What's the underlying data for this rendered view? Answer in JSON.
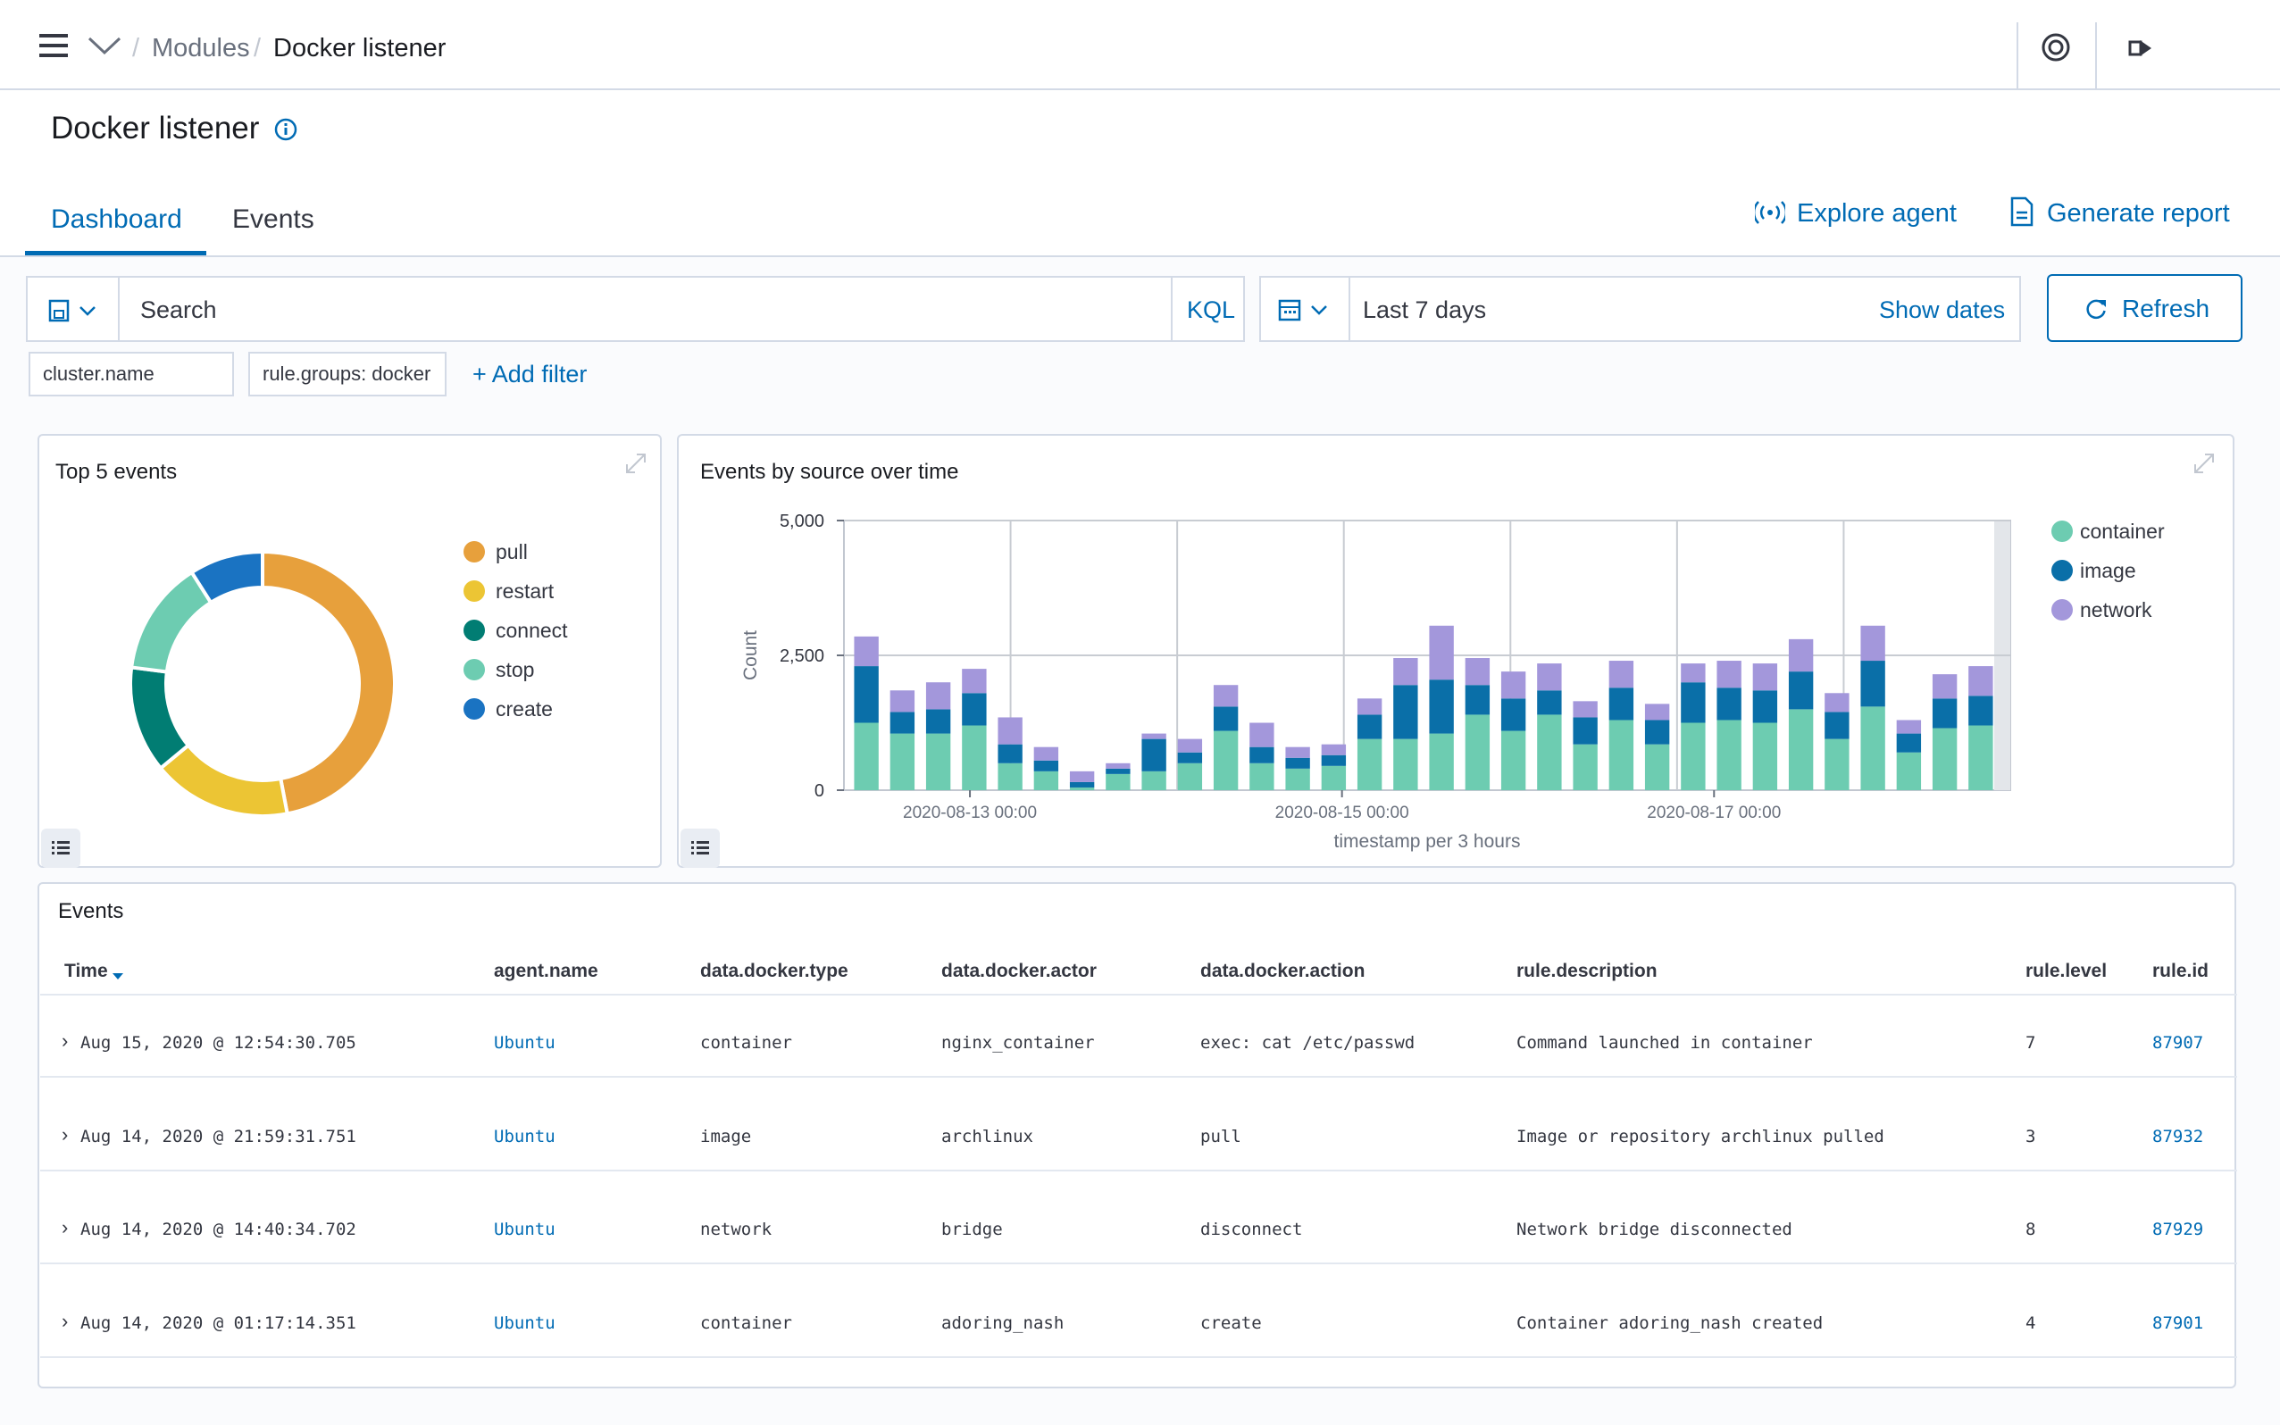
{
  "breadcrumb": {
    "items": [
      "Modules",
      "Docker listener"
    ]
  },
  "page": {
    "title": "Docker listener"
  },
  "tabs": [
    {
      "label": "Dashboard"
    },
    {
      "label": "Events"
    }
  ],
  "actions": {
    "explore_agent": "Explore agent",
    "generate_report": "Generate report"
  },
  "query": {
    "search_placeholder": "Search",
    "kql": "KQL",
    "date_range": "Last 7 days",
    "show_dates": "Show dates",
    "refresh": "Refresh"
  },
  "filters": {
    "pills": [
      "cluster.name",
      "rule.groups: docker"
    ],
    "add_filter": "+ Add filter"
  },
  "donut_panel": {
    "title": "Top 5 events",
    "chart_data": {
      "type": "pie",
      "labels": [
        "pull",
        "restart",
        "connect",
        "stop",
        "create"
      ],
      "values": [
        47,
        17,
        13,
        14,
        9
      ],
      "colors": [
        "#e7a03c",
        "#ecc534",
        "#017d73",
        "#6dccb1",
        "#1a73c2"
      ]
    }
  },
  "bar_panel": {
    "title": "Events by source over time",
    "chart_data": {
      "type": "bar",
      "stacked": true,
      "ylabel": "Count",
      "xlabel": "timestamp per 3 hours",
      "ylim": [
        0,
        5000
      ],
      "yticks": [
        "0",
        "2,500",
        "5,000"
      ],
      "xticks": [
        "2020-08-13 00:00",
        "2020-08-15 00:00",
        "2020-08-17 00:00"
      ],
      "grid": true,
      "legend_position": "right",
      "series": [
        {
          "name": "container",
          "color": "#6dccb1",
          "values": [
            1250,
            1050,
            1050,
            1200,
            500,
            350,
            50,
            300,
            350,
            500,
            1100,
            500,
            400,
            450,
            950,
            950,
            1050,
            1400,
            1100,
            1400,
            850,
            1300,
            850,
            1250,
            1300,
            1250,
            1500,
            950,
            1550,
            700,
            1150,
            1200
          ]
        },
        {
          "name": "image",
          "color": "#0a6fa8",
          "values": [
            1050,
            400,
            450,
            600,
            350,
            200,
            100,
            100,
            600,
            200,
            450,
            300,
            200,
            200,
            450,
            1000,
            1000,
            550,
            600,
            450,
            500,
            600,
            450,
            750,
            600,
            600,
            700,
            500,
            850,
            350,
            550,
            550
          ]
        },
        {
          "name": "network",
          "color": "#a397db",
          "values": [
            550,
            400,
            500,
            450,
            500,
            250,
            200,
            100,
            100,
            250,
            400,
            450,
            200,
            200,
            300,
            500,
            1000,
            500,
            500,
            500,
            300,
            500,
            300,
            350,
            500,
            500,
            600,
            350,
            650,
            250,
            450,
            550
          ]
        }
      ]
    }
  },
  "events_table": {
    "title": "Events",
    "columns": [
      "Time",
      "agent.name",
      "data.docker.type",
      "data.docker.actor",
      "data.docker.action",
      "rule.description",
      "rule.level",
      "rule.id"
    ],
    "rows": [
      {
        "time": "Aug 15, 2020 @ 12:54:30.705",
        "agent": "Ubuntu",
        "type": "container",
        "actor": "nginx_container",
        "action": "exec: cat /etc/passwd",
        "description": "Command launched in container",
        "level": "7",
        "id": "87907"
      },
      {
        "time": "Aug 14, 2020 @ 21:59:31.751",
        "agent": "Ubuntu",
        "type": "image",
        "actor": "archlinux",
        "action": "pull",
        "description": "Image or repository archlinux pulled",
        "level": "3",
        "id": "87932"
      },
      {
        "time": "Aug 14, 2020 @ 14:40:34.702",
        "agent": "Ubuntu",
        "type": "network",
        "actor": "bridge",
        "action": "disconnect",
        "description": "Network bridge disconnected",
        "level": "8",
        "id": "87929"
      },
      {
        "time": "Aug 14, 2020 @ 01:17:14.351",
        "agent": "Ubuntu",
        "type": "container",
        "actor": "adoring_nash",
        "action": "create",
        "description": "Container adoring_nash created",
        "level": "4",
        "id": "87901"
      }
    ]
  }
}
